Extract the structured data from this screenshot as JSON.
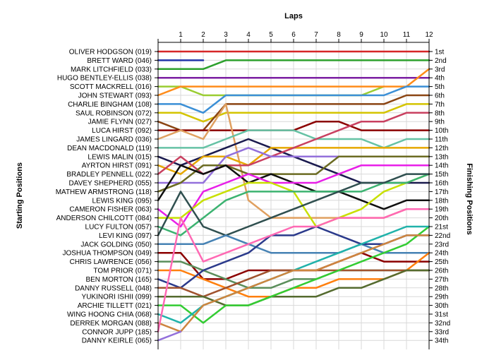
{
  "chart_data": {
    "type": "line",
    "title": "",
    "xlabel": "Laps",
    "ylabel_left": "Starting Positions",
    "ylabel_right": "Finishing Positions",
    "x": [
      1,
      2,
      3,
      4,
      5,
      6,
      7,
      8,
      9,
      10,
      11,
      12
    ],
    "xlim": [
      0,
      12
    ],
    "ylim": [
      1,
      34
    ],
    "grid": true,
    "starting_labels": [
      "OLIVER HODGSON (019)",
      "BRETT WARD (046)",
      "MARK LITCHFIELD (033)",
      "HUGO BENTLEY-ELLIS (038)",
      "SCOTT MACKRELL (016)",
      "JOHN STEWART (093)",
      "CHARLIE BINGHAM (108)",
      "SAUL ROBINSON (072)",
      "JAMIE FLYNN (027)",
      "LUCA HIRST (092)",
      "JAMES LINGARD (036)",
      "DEAN MACDONALD (119)",
      "LEWIS MALIN (015)",
      "AYRTON HIRST (091)",
      "BRADLEY PENNELL (022)",
      "DAVEY SHEPHERD (055)",
      "MATHEW ARMSTRONG (118)",
      "LEWIS KING (095)",
      "CAMERON FISHER (063)",
      "ANDERSON CHILCOTT (084)",
      "LUCY FULTON (057)",
      "LEVI KING (097)",
      "JACK GOLDING (050)",
      "JOSHUA THOMPSON (049)",
      "CHRIS LAWRENCE (056)",
      "TOM PRIOR (071)",
      "BEN MORTON (165)",
      "DANNY RUSSELL (048)",
      "YUKINORI ISHII (099)",
      "ARCHIE TILLETT (021)",
      "WING HOONG CHIA (068)",
      "DERREK MORGAN (088)",
      "CONNOR JUPP (185)",
      "DANNY KEIRLE (065)"
    ],
    "finishing_labels": [
      "1st",
      "2nd",
      "3rd",
      "4th",
      "5th",
      "6th",
      "7th",
      "8th",
      "9th",
      "10th",
      "11th",
      "12th",
      "13th",
      "14th",
      "15th",
      "16th",
      "17th",
      "18th",
      "19th",
      "20th",
      "21st",
      "22nd",
      "23rd",
      "24th",
      "25th",
      "26th",
      "27th",
      "28th",
      "29th",
      "30th",
      "31st",
      "32nd",
      "33rd",
      "34th"
    ],
    "series": [
      {
        "start": 1,
        "color": "#d62728",
        "positions": [
          1,
          1,
          1,
          1,
          1,
          1,
          1,
          1,
          1,
          1,
          1,
          1
        ]
      },
      {
        "start": 2,
        "color": "#2233aa",
        "positions": [
          2,
          2
        ]
      },
      {
        "start": 3,
        "color": "#2ca02c",
        "positions": [
          3,
          3,
          2,
          2,
          2,
          2,
          2,
          2,
          2,
          2,
          2,
          2
        ]
      },
      {
        "start": 4,
        "color": "#7b1fa2",
        "positions": [
          4,
          4,
          4,
          4,
          4,
          4,
          4,
          4,
          4,
          4,
          4,
          4
        ]
      },
      {
        "start": 5,
        "color": "#9acd32",
        "positions": [
          5,
          6,
          6,
          6,
          6,
          6,
          6,
          6,
          6,
          5
        ]
      },
      {
        "start": 6,
        "color": "#ff8c1a",
        "positions": [
          5,
          5,
          5,
          5,
          5,
          5,
          5,
          5,
          5,
          5,
          5,
          3
        ]
      },
      {
        "start": 7,
        "color": "#3b8fd6",
        "positions": [
          7,
          8,
          6,
          6,
          6,
          6,
          6,
          6,
          6,
          6,
          5,
          5
        ]
      },
      {
        "start": 8,
        "color": "#d4c400",
        "positions": [
          8,
          9,
          8,
          8,
          8,
          8,
          8,
          8,
          8,
          8,
          7,
          7
        ]
      },
      {
        "start": 9,
        "color": "#8b4513",
        "positions": [
          10,
          10,
          7,
          7,
          7,
          7,
          7,
          7,
          7,
          7,
          6,
          6
        ]
      },
      {
        "start": 10,
        "color": "#8b0000",
        "positions": [
          10,
          10,
          10,
          10,
          10,
          10,
          9,
          9,
          10,
          10,
          10,
          10
        ]
      },
      {
        "start": 11,
        "color": "#e0a060",
        "positions": [
          10,
          11,
          7,
          18,
          20,
          20,
          20,
          20,
          20,
          20,
          19,
          19
        ]
      },
      {
        "start": 12,
        "color": "#66c2a5",
        "positions": [
          12,
          12,
          11,
          10,
          10,
          10,
          11,
          11,
          11,
          12,
          11,
          11
        ]
      },
      {
        "start": 13,
        "color": "#1a1a4e",
        "positions": [
          14,
          13,
          12,
          11,
          12,
          13,
          14,
          15,
          16,
          16,
          16,
          16
        ]
      },
      {
        "start": 14,
        "color": "#e6a800",
        "positions": [
          15,
          13,
          13,
          14,
          12,
          12,
          12,
          12,
          12,
          12,
          12,
          12
        ]
      },
      {
        "start": 15,
        "color": "#c94060",
        "positions": [
          13,
          15,
          14,
          14,
          13,
          12,
          11,
          10,
          9,
          9,
          8,
          8
        ]
      },
      {
        "start": 16,
        "color": "#9370db",
        "positions": [
          16,
          16,
          13,
          12,
          13,
          13,
          13,
          13,
          13,
          13,
          13,
          13
        ]
      },
      {
        "start": 17,
        "color": "#6b6b22",
        "positions": [
          16,
          14,
          14,
          15,
          15,
          15,
          15,
          13,
          13,
          13,
          13,
          13
        ]
      },
      {
        "start": 18,
        "color": "#101010",
        "positions": [
          14,
          15,
          14,
          16,
          15,
          16,
          17,
          17,
          18,
          19,
          18,
          18
        ]
      },
      {
        "start": 19,
        "color": "#e81fe8",
        "positions": [
          21,
          17,
          16,
          15,
          16,
          16,
          16,
          15,
          14,
          14,
          14,
          14
        ]
      },
      {
        "start": 20,
        "color": "#c8e000",
        "positions": [
          20,
          18,
          17,
          16,
          16,
          17,
          21,
          20,
          19,
          17,
          16,
          15
        ]
      },
      {
        "start": 21,
        "color": "#3cb371",
        "positions": [
          22,
          20,
          18,
          17,
          17,
          17,
          17,
          17,
          17,
          16,
          16,
          15
        ]
      },
      {
        "start": 22,
        "color": "#2f4f4f",
        "positions": [
          17,
          21,
          22,
          21,
          20,
          19,
          18,
          17,
          16,
          16,
          15,
          15
        ]
      },
      {
        "start": 23,
        "color": "#4682b4",
        "positions": [
          23,
          23,
          22,
          23,
          24,
          24,
          24,
          24,
          23,
          24,
          24,
          24
        ]
      },
      {
        "start": 24,
        "color": "#8b0000",
        "positions": [
          24,
          27,
          27,
          26,
          26,
          26,
          26,
          25,
          24,
          25,
          25,
          25
        ]
      },
      {
        "start": 25,
        "color": "#5b8e5b",
        "positions": [
          25,
          26,
          27,
          28,
          28,
          27,
          27,
          26,
          26,
          26,
          26,
          26
        ]
      },
      {
        "start": 26,
        "color": "#ff7f0e",
        "positions": [
          26,
          27,
          28,
          29,
          29,
          28,
          28,
          27,
          27,
          27,
          26,
          24
        ]
      },
      {
        "start": 27,
        "color": "#2b3a8b",
        "positions": [
          28,
          26,
          25,
          24,
          22,
          22,
          21,
          22,
          23,
          23,
          22,
          22
        ]
      },
      {
        "start": 28,
        "color": "#a0522d",
        "positions": [
          28,
          29,
          28,
          27,
          26,
          26,
          26,
          26,
          26,
          26,
          26,
          26
        ]
      },
      {
        "start": 29,
        "color": "#556b2f",
        "positions": [
          29,
          29,
          30,
          30,
          29,
          29,
          29,
          28,
          28,
          27,
          26,
          26
        ]
      },
      {
        "start": 30,
        "color": "#33cc33",
        "positions": [
          30,
          32,
          30,
          30,
          29,
          28,
          27,
          26,
          25,
          24,
          23,
          21
        ]
      },
      {
        "start": 31,
        "color": "#20b2aa",
        "positions": [
          32,
          30,
          29,
          28,
          27,
          26,
          25,
          24,
          23,
          22,
          21,
          21
        ]
      },
      {
        "start": 32,
        "color": "#cd853f",
        "positions": [
          33,
          30,
          29,
          28,
          27,
          26,
          26,
          25,
          24,
          23,
          22,
          22
        ]
      },
      {
        "start": 33,
        "color": "#ff69b4",
        "positions": [
          20,
          25,
          24,
          23,
          22,
          21,
          21,
          20,
          20,
          20,
          19,
          19
        ]
      },
      {
        "start": 34,
        "color": "#9370db",
        "positions": [
          33
        ]
      }
    ]
  }
}
